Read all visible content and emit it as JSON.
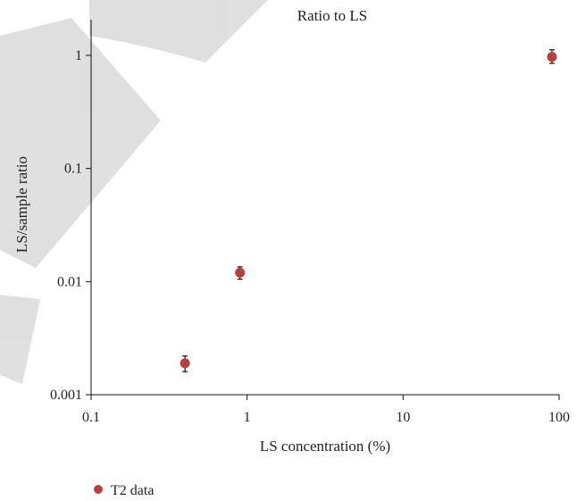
{
  "chart_data": {
    "type": "scatter",
    "title": "Ratio to LS",
    "xlabel": "LS concentration (%)",
    "ylabel": "LS/sample ratio",
    "x_scale": "log",
    "y_scale": "log",
    "xlim": [
      0.1,
      100
    ],
    "ylim": [
      0.001,
      1
    ],
    "x_ticks": [
      "0.1",
      "1",
      "10",
      "100"
    ],
    "y_ticks": [
      "0.001",
      "0.01",
      "0.1",
      "1"
    ],
    "grid": false,
    "legend": "bottom-left",
    "series": [
      {
        "name": "T2 data",
        "color": "#b5403f",
        "points": [
          {
            "x": 0.4,
            "y": 0.0019,
            "err_low": 0.0016,
            "err_high": 0.0022
          },
          {
            "x": 0.9,
            "y": 0.012,
            "err_low": 0.0105,
            "err_high": 0.0135
          },
          {
            "x": 90,
            "y": 0.97,
            "err_low": 0.85,
            "err_high": 1.12
          }
        ]
      }
    ]
  }
}
